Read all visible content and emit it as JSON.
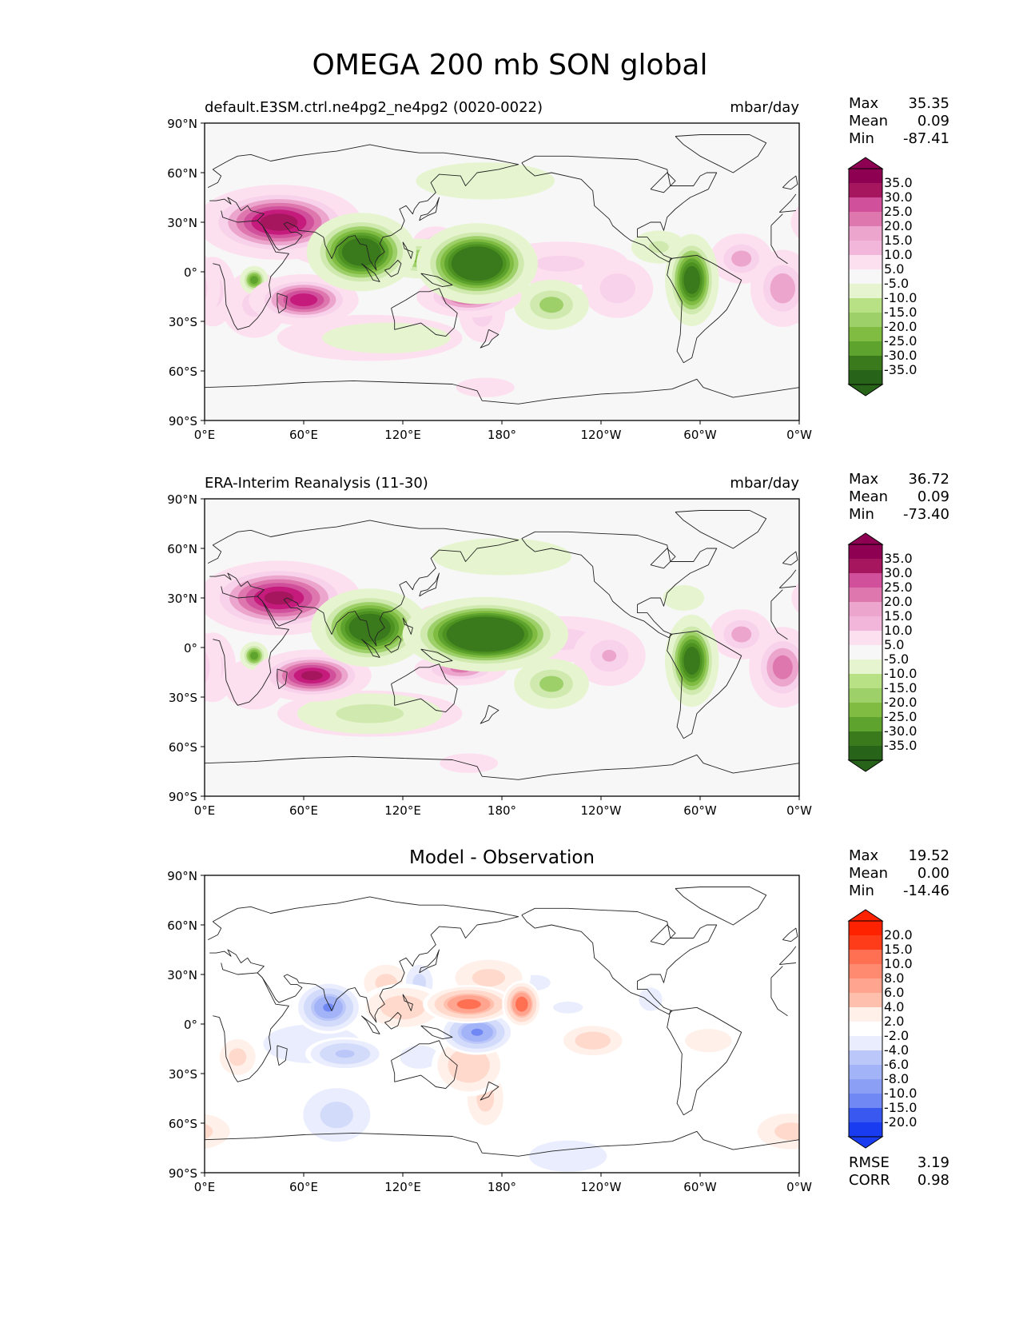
{
  "figure": {
    "title": "OMEGA 200 mb SON global"
  },
  "axes": {
    "y_ticks": [
      "90°N",
      "60°N",
      "30°N",
      "0°",
      "30°S",
      "60°S",
      "90°S"
    ],
    "x_ticks": [
      "0°E",
      "60°E",
      "120°E",
      "180°",
      "120°W",
      "60°W",
      "0°W"
    ]
  },
  "chart_data": [
    {
      "type": "heatmap",
      "title": "default.E3SM.ctrl.ne4pg2_ne4pg2 (0020-0022)",
      "units": "mbar/day",
      "stats": [
        {
          "label": "Max",
          "value": "35.35"
        },
        {
          "label": "Mean",
          "value": "0.09"
        },
        {
          "label": "Min",
          "value": "-87.41"
        }
      ],
      "colorbar": {
        "ticks": [
          "35.0",
          "30.0",
          "25.0",
          "20.0",
          "15.0",
          "10.0",
          "5.0",
          "-5.0",
          "-10.0",
          "-15.0",
          "-20.0",
          "-25.0",
          "-30.0",
          "-35.0"
        ],
        "colors": [
          "#8e0152",
          "#a6165e",
          "#c51b7d",
          "#d0509c",
          "#de77ae",
          "#eca5cd",
          "#f1b6da",
          "#f8d2ea",
          "#fde0ef",
          "#f7f7f7",
          "#e6f5d0",
          "#cfe9ae",
          "#b8e186",
          "#9ed06a",
          "#7fbc41",
          "#5fa32f",
          "#4d9221",
          "#3a7a1c",
          "#276419"
        ]
      },
      "features": [
        {
          "lon": 45,
          "lat": 30,
          "value": 40,
          "sx": 22,
          "sy": 10
        },
        {
          "lon": 70,
          "lat": 26,
          "value": 15,
          "sx": 14,
          "sy": 12
        },
        {
          "lon": 60,
          "lat": -17,
          "value": 35,
          "sx": 15,
          "sy": 7
        },
        {
          "lon": 30,
          "lat": -20,
          "value": 12,
          "sx": 12,
          "sy": 12
        },
        {
          "lon": 5,
          "lat": -12,
          "value": 14,
          "sx": 8,
          "sy": 12
        },
        {
          "lon": 160,
          "lat": -15,
          "value": 28,
          "sx": 15,
          "sy": 6
        },
        {
          "lon": 168,
          "lat": -25,
          "value": 14,
          "sx": 8,
          "sy": 10
        },
        {
          "lon": 140,
          "lat": 17,
          "value": 14,
          "sx": 8,
          "sy": 6
        },
        {
          "lon": 215,
          "lat": 5,
          "value": 12,
          "sx": 25,
          "sy": 8
        },
        {
          "lon": 250,
          "lat": -10,
          "value": 15,
          "sx": 12,
          "sy": 10
        },
        {
          "lon": 325,
          "lat": 8,
          "value": 18,
          "sx": 10,
          "sy": 8
        },
        {
          "lon": 350,
          "lat": -10,
          "value": 20,
          "sx": 10,
          "sy": 12
        },
        {
          "lon": 100,
          "lat": -40,
          "value": 8,
          "sx": 40,
          "sy": 10
        },
        {
          "lon": 170,
          "lat": -70,
          "value": 6,
          "sx": 15,
          "sy": 5
        },
        {
          "lon": 95,
          "lat": 12,
          "value": -50,
          "sx": 14,
          "sy": 10
        },
        {
          "lon": 165,
          "lat": 5,
          "value": -60,
          "sx": 15,
          "sy": 10
        },
        {
          "lon": 130,
          "lat": 8,
          "value": -22,
          "sx": 12,
          "sy": 6
        },
        {
          "lon": 295,
          "lat": -5,
          "value": -45,
          "sx": 7,
          "sy": 12
        },
        {
          "lon": 30,
          "lat": -5,
          "value": -30,
          "sx": 4,
          "sy": 4
        },
        {
          "lon": 210,
          "lat": -20,
          "value": -18,
          "sx": 12,
          "sy": 8
        },
        {
          "lon": 110,
          "lat": -40,
          "value": -10,
          "sx": 25,
          "sy": 6
        },
        {
          "lon": 170,
          "lat": 55,
          "value": -8,
          "sx": 30,
          "sy": 8
        },
        {
          "lon": 275,
          "lat": 15,
          "value": -12,
          "sx": 10,
          "sy": 6
        }
      ]
    },
    {
      "type": "heatmap",
      "title": "ERA-Interim Reanalysis (11-30)",
      "units": "mbar/day",
      "stats": [
        {
          "label": "Max",
          "value": "36.72"
        },
        {
          "label": "Mean",
          "value": "0.09"
        },
        {
          "label": "Min",
          "value": "-73.40"
        }
      ],
      "colorbar": {
        "ticks": [
          "35.0",
          "30.0",
          "25.0",
          "20.0",
          "15.0",
          "10.0",
          "5.0",
          "-5.0",
          "-10.0",
          "-15.0",
          "-20.0",
          "-25.0",
          "-30.0",
          "-35.0"
        ],
        "colors": [
          "#8e0152",
          "#a6165e",
          "#c51b7d",
          "#d0509c",
          "#de77ae",
          "#eca5cd",
          "#f1b6da",
          "#f8d2ea",
          "#fde0ef",
          "#f7f7f7",
          "#e6f5d0",
          "#cfe9ae",
          "#b8e186",
          "#9ed06a",
          "#7fbc41",
          "#5fa32f",
          "#4d9221",
          "#3a7a1c",
          "#276419"
        ]
      },
      "features": [
        {
          "lon": 45,
          "lat": 30,
          "value": 38,
          "sx": 22,
          "sy": 10
        },
        {
          "lon": 65,
          "lat": -17,
          "value": 38,
          "sx": 16,
          "sy": 7
        },
        {
          "lon": 5,
          "lat": -12,
          "value": 14,
          "sx": 8,
          "sy": 12
        },
        {
          "lon": 30,
          "lat": -22,
          "value": 10,
          "sx": 12,
          "sy": 10
        },
        {
          "lon": 155,
          "lat": -13,
          "value": 22,
          "sx": 14,
          "sy": 5
        },
        {
          "lon": 140,
          "lat": 17,
          "value": 14,
          "sx": 7,
          "sy": 5
        },
        {
          "lon": 215,
          "lat": 5,
          "value": 14,
          "sx": 25,
          "sy": 8
        },
        {
          "lon": 245,
          "lat": -5,
          "value": 16,
          "sx": 12,
          "sy": 10
        },
        {
          "lon": 325,
          "lat": 8,
          "value": 18,
          "sx": 10,
          "sy": 8
        },
        {
          "lon": 350,
          "lat": -12,
          "value": 24,
          "sx": 10,
          "sy": 12
        },
        {
          "lon": 100,
          "lat": -40,
          "value": 8,
          "sx": 40,
          "sy": 10
        },
        {
          "lon": 160,
          "lat": -70,
          "value": 6,
          "sx": 15,
          "sy": 5
        },
        {
          "lon": 100,
          "lat": 12,
          "value": -50,
          "sx": 15,
          "sy": 10
        },
        {
          "lon": 170,
          "lat": 8,
          "value": -70,
          "sx": 20,
          "sy": 9
        },
        {
          "lon": 135,
          "lat": 8,
          "value": -22,
          "sx": 12,
          "sy": 6
        },
        {
          "lon": 295,
          "lat": -8,
          "value": -45,
          "sx": 7,
          "sy": 12
        },
        {
          "lon": 30,
          "lat": -5,
          "value": -30,
          "sx": 4,
          "sy": 4
        },
        {
          "lon": 210,
          "lat": -22,
          "value": -18,
          "sx": 12,
          "sy": 8
        },
        {
          "lon": 100,
          "lat": -40,
          "value": -14,
          "sx": 25,
          "sy": 7
        },
        {
          "lon": 180,
          "lat": 55,
          "value": -8,
          "sx": 30,
          "sy": 8
        },
        {
          "lon": 290,
          "lat": 30,
          "value": -10,
          "sx": 8,
          "sy": 5
        }
      ]
    },
    {
      "type": "heatmap",
      "title": "Model - Observation",
      "units": "",
      "stats": [
        {
          "label": "Max",
          "value": "19.52"
        },
        {
          "label": "Mean",
          "value": "0.00"
        },
        {
          "label": "Min",
          "value": "-14.46"
        }
      ],
      "footer": [
        {
          "label": "RMSE",
          "value": "3.19"
        },
        {
          "label": "CORR",
          "value": "0.98"
        }
      ],
      "colorbar": {
        "ticks": [
          "20.0",
          "15.0",
          "10.0",
          "8.0",
          "6.0",
          "4.0",
          "2.0",
          "-2.0",
          "-4.0",
          "-6.0",
          "-8.0",
          "-10.0",
          "-15.0",
          "-20.0"
        ],
        "colors": [
          "#ff2200",
          "#ff3c1a",
          "#ff5533",
          "#ff6f52",
          "#ff8a70",
          "#ffa48f",
          "#ffbfad",
          "#ffd9cc",
          "#fff0ea",
          "#ffffff",
          "#e9edfd",
          "#d3dbfb",
          "#bbc7f9",
          "#a3b3f7",
          "#8ba0f5",
          "#6f88f3",
          "#5470f1",
          "#3858ef",
          "#1a3cf0"
        ]
      },
      "features": [
        {
          "lon": 160,
          "lat": 12,
          "value": 18,
          "sx": 12,
          "sy": 5
        },
        {
          "lon": 192,
          "lat": 12,
          "value": 20,
          "sx": 5,
          "sy": 6
        },
        {
          "lon": 172,
          "lat": 28,
          "value": 5,
          "sx": 15,
          "sy": 8
        },
        {
          "lon": 120,
          "lat": 10,
          "value": 6,
          "sx": 15,
          "sy": 8
        },
        {
          "lon": 110,
          "lat": 25,
          "value": 5,
          "sx": 10,
          "sy": 8
        },
        {
          "lon": 160,
          "lat": -25,
          "value": 7,
          "sx": 12,
          "sy": 10
        },
        {
          "lon": 170,
          "lat": -45,
          "value": 5,
          "sx": 8,
          "sy": 12
        },
        {
          "lon": 235,
          "lat": -10,
          "value": 6,
          "sx": 12,
          "sy": 6
        },
        {
          "lon": 305,
          "lat": -10,
          "value": 4,
          "sx": 12,
          "sy": 6
        },
        {
          "lon": 20,
          "lat": -20,
          "value": 5,
          "sx": 8,
          "sy": 8
        },
        {
          "lon": 355,
          "lat": -65,
          "value": 5,
          "sx": 15,
          "sy": 8
        },
        {
          "lon": 10,
          "lat": -65,
          "value": 4,
          "sx": 8,
          "sy": 8
        },
        {
          "lon": 75,
          "lat": 10,
          "value": -16,
          "sx": 9,
          "sy": 7
        },
        {
          "lon": 165,
          "lat": -5,
          "value": -16,
          "sx": 10,
          "sy": 6
        },
        {
          "lon": 85,
          "lat": -18,
          "value": -9,
          "sx": 12,
          "sy": 5
        },
        {
          "lon": 65,
          "lat": -12,
          "value": -4,
          "sx": 25,
          "sy": 10
        },
        {
          "lon": 130,
          "lat": -20,
          "value": -4,
          "sx": 10,
          "sy": 6
        },
        {
          "lon": 130,
          "lat": 25,
          "value": -5,
          "sx": 6,
          "sy": 8
        },
        {
          "lon": 220,
          "lat": 10,
          "value": -3,
          "sx": 10,
          "sy": 4
        },
        {
          "lon": 270,
          "lat": 15,
          "value": -4,
          "sx": 6,
          "sy": 6
        },
        {
          "lon": 80,
          "lat": -55,
          "value": -5,
          "sx": 15,
          "sy": 12
        },
        {
          "lon": 220,
          "lat": -80,
          "value": -4,
          "sx": 20,
          "sy": 8
        },
        {
          "lon": 200,
          "lat": 25,
          "value": -4,
          "sx": 8,
          "sy": 4
        }
      ]
    }
  ]
}
